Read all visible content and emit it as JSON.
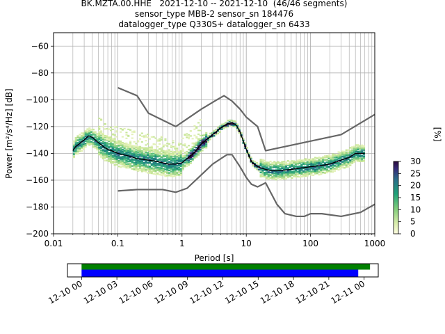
{
  "title": {
    "line1": "BK.MZTA.00.HHE   2021-12-10 -- 2021-12-10  (46/46 segments)",
    "line2": "sensor_type MBB-2 sensor_sn 184476",
    "line3": "datalogger_type Q330S+ datalogger_sn 6433"
  },
  "colors": {
    "mean": "#000000",
    "noise_models": "#666666",
    "grid": "#b0b0b0",
    "coverage_data": "#008000",
    "coverage_psd": "#0000ff"
  },
  "chart_data": [
    {
      "type": "heatmap",
      "xlabel": "Period [s]",
      "ylabel": "Power [m²/s⁴/Hz] [dB]",
      "xscale": "log",
      "xlim": [
        0.01,
        1000
      ],
      "ylim": [
        -200,
        -50
      ],
      "x_ticks": [
        "0.01",
        "0.1",
        "1",
        "10",
        "100",
        "1000"
      ],
      "y_ticks": [
        "−60",
        "−80",
        "−100",
        "−120",
        "−140",
        "−160",
        "−180",
        "−200"
      ],
      "grid": true,
      "colorbar": {
        "label": "[%]",
        "ticks": [
          "0",
          "5",
          "10",
          "15",
          "20",
          "25",
          "30"
        ],
        "range": [
          0,
          30
        ]
      },
      "mean_curve": {
        "x": [
          0.02,
          0.022,
          0.025,
          0.028,
          0.03,
          0.035,
          0.04,
          0.05,
          0.06,
          0.07,
          0.08,
          0.1,
          0.15,
          0.2,
          0.3,
          0.4,
          0.5,
          0.6,
          0.7,
          0.8,
          1,
          1.5,
          2,
          3,
          4,
          5,
          6,
          7,
          8,
          10,
          12,
          15,
          20,
          25,
          30,
          50,
          70,
          100,
          150,
          200,
          300,
          400,
          500,
          700
        ],
        "y": [
          -138,
          -135,
          -133,
          -131,
          -130,
          -127,
          -128,
          -132,
          -135,
          -137,
          -138,
          -140,
          -142,
          -144,
          -145,
          -146,
          -147,
          -148,
          -148,
          -148,
          -147,
          -140,
          -133,
          -126,
          -121,
          -118,
          -117,
          -119,
          -124,
          -137,
          -146,
          -150,
          -152,
          -153,
          -153,
          -152,
          -151,
          -150,
          -149,
          -148,
          -145,
          -143,
          -140,
          -140
        ]
      },
      "noise_model_high": {
        "x": [
          0.1,
          0.2,
          0.3,
          0.8,
          2,
          3.5,
          4.5,
          6,
          8,
          10,
          15,
          20,
          300,
          1000
        ],
        "y": [
          -91,
          -97,
          -110,
          -120,
          -107,
          -100,
          -97,
          -101,
          -107,
          -113,
          -120,
          -138,
          -126,
          -111
        ]
      },
      "noise_model_low": {
        "x": [
          0.1,
          0.2,
          0.5,
          0.8,
          1.2,
          2,
          3,
          4,
          5,
          6,
          8,
          10,
          12,
          15,
          20,
          30,
          40,
          60,
          80,
          100,
          150,
          300,
          600,
          1000
        ],
        "y": [
          -168,
          -167,
          -167,
          -169,
          -166,
          -156,
          -148,
          -144,
          -141,
          -141,
          -150,
          -158,
          -163,
          -165,
          -162,
          -178,
          -185,
          -187,
          -187,
          -185,
          -185,
          -187,
          -184,
          -178
        ]
      }
    },
    {
      "type": "bar",
      "title": "",
      "xlabel": "",
      "x_ticks": [
        "12-10 00",
        "12-10 03",
        "12-10 06",
        "12-10 09",
        "12-10 12",
        "12-10 15",
        "12-10 18",
        "12-10 21",
        "12-11 00"
      ],
      "xlim_hours": [
        -1.2,
        25.2
      ],
      "series": [
        {
          "start_hour": 0,
          "end_hour": 24.5
        },
        {
          "start_hour": 0,
          "end_hour": 23.5
        }
      ]
    }
  ]
}
